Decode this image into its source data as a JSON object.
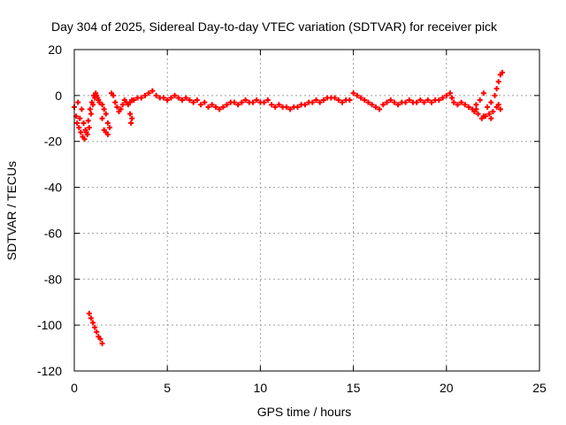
{
  "chart_data": {
    "type": "scatter",
    "title": "Day 304 of 2025, Sidereal Day-to-day VTEC variation (SDTVAR) for receiver pick",
    "xlabel": "GPS time / hours",
    "ylabel": "SDTVAR / TECUs",
    "xlim": [
      0,
      25
    ],
    "ylim": [
      -120,
      20
    ],
    "xticks": [
      0,
      5,
      10,
      15,
      20,
      25
    ],
    "yticks": [
      20,
      0,
      -20,
      -40,
      -60,
      -80,
      -100,
      -120
    ],
    "grid": true,
    "marker_color": "#ff0000",
    "series": [
      {
        "values": [
          [
            0.0,
            -5
          ],
          [
            0.2,
            -3
          ],
          [
            0.4,
            -6
          ],
          [
            0.5,
            -12
          ],
          [
            0.6,
            -15
          ],
          [
            0.7,
            -17
          ],
          [
            0.8,
            -14
          ],
          [
            0.9,
            -8
          ],
          [
            1.0,
            -4
          ],
          [
            1.1,
            -1
          ],
          [
            1.2,
            0
          ],
          [
            1.3,
            -2
          ],
          [
            0.3,
            -10
          ],
          [
            0.1,
            -9
          ],
          [
            0.45,
            -18
          ],
          [
            0.55,
            -19
          ],
          [
            0.65,
            -16
          ],
          [
            0.75,
            -11
          ],
          [
            0.85,
            -6
          ],
          [
            0.95,
            -3
          ],
          [
            1.05,
            0
          ],
          [
            1.15,
            1
          ],
          [
            1.25,
            -1
          ],
          [
            1.35,
            -3
          ],
          [
            0.25,
            -14
          ],
          [
            0.35,
            -16
          ],
          [
            0.15,
            -12
          ],
          [
            1.5,
            -4
          ],
          [
            1.6,
            -6
          ],
          [
            1.7,
            -8
          ],
          [
            1.8,
            -12
          ],
          [
            1.9,
            -14
          ],
          [
            1.5,
            -10
          ],
          [
            1.6,
            -15
          ],
          [
            1.7,
            -16
          ],
          [
            1.8,
            -17
          ],
          [
            2.0,
            1
          ],
          [
            2.1,
            0
          ],
          [
            2.2,
            -3
          ],
          [
            2.3,
            -5
          ],
          [
            2.4,
            -7
          ],
          [
            2.5,
            -6
          ],
          [
            2.6,
            -4
          ],
          [
            2.7,
            -2
          ],
          [
            2.8,
            -3
          ],
          [
            2.9,
            -4
          ],
          [
            3.0,
            -3
          ],
          [
            3.1,
            -2
          ],
          [
            3.0,
            -8
          ],
          [
            3.1,
            -10
          ],
          [
            3.05,
            -12
          ],
          [
            3.2,
            -2
          ],
          [
            3.4,
            -1
          ],
          [
            3.6,
            -1
          ],
          [
            3.8,
            0
          ],
          [
            4.0,
            1
          ],
          [
            4.2,
            2
          ],
          [
            4.4,
            0
          ],
          [
            4.6,
            -1
          ],
          [
            4.8,
            -1
          ],
          [
            5.0,
            -2
          ],
          [
            5.2,
            -1
          ],
          [
            5.4,
            0
          ],
          [
            5.6,
            -1
          ],
          [
            5.8,
            -2
          ],
          [
            6.0,
            -1
          ],
          [
            6.2,
            -2
          ],
          [
            6.4,
            -3
          ],
          [
            6.6,
            -2
          ],
          [
            6.8,
            -4
          ],
          [
            7.0,
            -3
          ],
          [
            7.2,
            -5
          ],
          [
            7.4,
            -4
          ],
          [
            7.6,
            -5
          ],
          [
            7.8,
            -6
          ],
          [
            8.0,
            -5
          ],
          [
            8.2,
            -4
          ],
          [
            8.4,
            -3
          ],
          [
            8.6,
            -3
          ],
          [
            8.8,
            -4
          ],
          [
            9.0,
            -3
          ],
          [
            9.2,
            -2
          ],
          [
            9.4,
            -3
          ],
          [
            9.6,
            -3
          ],
          [
            9.8,
            -2
          ],
          [
            10.0,
            -3
          ],
          [
            10.2,
            -3
          ],
          [
            10.4,
            -2
          ],
          [
            10.6,
            -4
          ],
          [
            10.8,
            -5
          ],
          [
            11.0,
            -4
          ],
          [
            11.2,
            -5
          ],
          [
            11.4,
            -5
          ],
          [
            11.6,
            -6
          ],
          [
            11.8,
            -5
          ],
          [
            12.0,
            -5
          ],
          [
            12.2,
            -4
          ],
          [
            12.4,
            -4
          ],
          [
            12.6,
            -3
          ],
          [
            12.8,
            -3
          ],
          [
            13.0,
            -2
          ],
          [
            13.2,
            -3
          ],
          [
            13.4,
            -2
          ],
          [
            13.6,
            -1
          ],
          [
            13.8,
            -1
          ],
          [
            14.0,
            -1
          ],
          [
            14.2,
            -2
          ],
          [
            14.4,
            -3
          ],
          [
            14.6,
            -2
          ],
          [
            14.8,
            -2
          ],
          [
            15.0,
            1
          ],
          [
            15.2,
            0
          ],
          [
            15.4,
            -1
          ],
          [
            15.6,
            -2
          ],
          [
            15.8,
            -3
          ],
          [
            16.0,
            -4
          ],
          [
            16.2,
            -5
          ],
          [
            16.4,
            -6
          ],
          [
            16.6,
            -4
          ],
          [
            16.8,
            -3
          ],
          [
            17.0,
            -2
          ],
          [
            17.2,
            -3
          ],
          [
            17.4,
            -4
          ],
          [
            17.6,
            -3
          ],
          [
            17.8,
            -3
          ],
          [
            18.0,
            -2
          ],
          [
            18.2,
            -3
          ],
          [
            18.4,
            -3
          ],
          [
            18.6,
            -2
          ],
          [
            18.8,
            -3
          ],
          [
            19.0,
            -2
          ],
          [
            19.2,
            -3
          ],
          [
            19.4,
            -2
          ],
          [
            19.6,
            -2
          ],
          [
            19.8,
            -1
          ],
          [
            20.0,
            0
          ],
          [
            20.2,
            1
          ],
          [
            20.3,
            -1
          ],
          [
            20.4,
            -3
          ],
          [
            20.6,
            -4
          ],
          [
            20.8,
            -3
          ],
          [
            21.0,
            -4
          ],
          [
            21.2,
            -5
          ],
          [
            21.4,
            -6
          ],
          [
            21.5,
            -7
          ],
          [
            21.6,
            -4
          ],
          [
            21.8,
            -2
          ],
          [
            22.0,
            1
          ],
          [
            21.7,
            -8
          ],
          [
            21.9,
            -10
          ],
          [
            22.1,
            -9
          ],
          [
            22.3,
            -8
          ],
          [
            22.5,
            -7
          ],
          [
            22.7,
            -5
          ],
          [
            22.2,
            -5
          ],
          [
            22.4,
            -3
          ],
          [
            22.6,
            0
          ],
          [
            22.7,
            3
          ],
          [
            22.8,
            6
          ],
          [
            22.9,
            9
          ],
          [
            23.0,
            10
          ],
          [
            22.8,
            -4
          ],
          [
            22.9,
            -6
          ],
          [
            21.6,
            -6
          ],
          [
            22.0,
            -9
          ],
          [
            22.4,
            -10
          ],
          [
            0.8,
            -95
          ],
          [
            0.9,
            -97
          ],
          [
            1.0,
            -99
          ],
          [
            1.1,
            -101
          ],
          [
            1.2,
            -103
          ],
          [
            1.3,
            -105
          ],
          [
            1.4,
            -106
          ],
          [
            1.5,
            -108
          ]
        ]
      }
    ]
  }
}
